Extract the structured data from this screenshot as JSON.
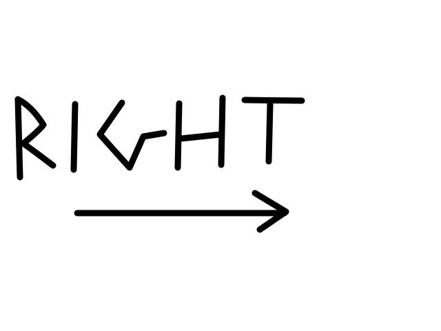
{
  "drawing": {
    "text": "RIGHT",
    "letters": [
      "R",
      "I",
      "G",
      "H",
      "T"
    ],
    "arrow_direction": "right",
    "background_color": "#ffffff",
    "ink_color": "#000000"
  }
}
